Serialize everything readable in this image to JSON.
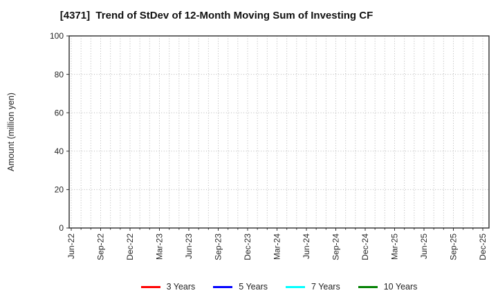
{
  "chart_data": {
    "type": "line",
    "title": "[4371]  Trend of StDev of 12-Month Moving Sum of Investing CF",
    "ylabel": "Amount (million yen)",
    "xlabel": "",
    "ylim": [
      0,
      100
    ],
    "yticks": [
      0,
      20,
      40,
      60,
      80,
      100
    ],
    "x_months": 43,
    "x_tick_every_months": 3,
    "x_tick_labels": [
      "Jun-22",
      "Sep-22",
      "Dec-22",
      "Mar-23",
      "Jun-23",
      "Sep-23",
      "Dec-23",
      "Mar-24",
      "Jun-24",
      "Sep-24",
      "Dec-24",
      "Mar-25",
      "Jun-25",
      "Sep-25",
      "Dec-25"
    ],
    "grid": "dotted",
    "legend_position": "bottom",
    "series": [
      {
        "name": "3 Years",
        "color": "#ff0000",
        "values": []
      },
      {
        "name": "5 Years",
        "color": "#0000ff",
        "values": []
      },
      {
        "name": "7 Years",
        "color": "#00ffff",
        "values": []
      },
      {
        "name": "10 Years",
        "color": "#008000",
        "values": []
      }
    ]
  },
  "colors": {
    "background": "#ffffff",
    "frame": "#2b2b2b",
    "grid": "#b4b4b4",
    "text": "#262626"
  }
}
